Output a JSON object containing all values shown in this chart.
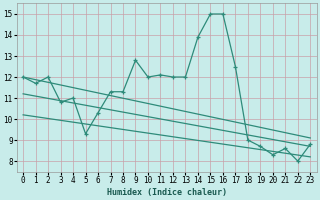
{
  "title": "",
  "xlabel": "Humidex (Indice chaleur)",
  "background_color": "#c8ecea",
  "grid_color": "#b0b0b0",
  "line_color": "#2e8b7a",
  "xlim": [
    -0.5,
    23.5
  ],
  "ylim": [
    7.5,
    15.5
  ],
  "xticks": [
    0,
    1,
    2,
    3,
    4,
    5,
    6,
    7,
    8,
    9,
    10,
    11,
    12,
    13,
    14,
    15,
    16,
    17,
    18,
    19,
    20,
    21,
    22,
    23
  ],
  "yticks": [
    8,
    9,
    10,
    11,
    12,
    13,
    14,
    15
  ],
  "main_x": [
    0,
    1,
    2,
    3,
    4,
    5,
    6,
    7,
    8,
    9,
    10,
    11,
    12,
    13,
    14,
    15,
    16,
    17,
    18,
    19,
    20,
    21,
    22,
    23
  ],
  "main_y": [
    12.0,
    11.7,
    12.0,
    10.8,
    11.0,
    9.3,
    10.3,
    11.3,
    11.3,
    12.8,
    12.0,
    12.1,
    12.0,
    12.0,
    13.9,
    15.0,
    15.0,
    12.5,
    9.0,
    8.7,
    8.3,
    8.6,
    8.0,
    8.8
  ],
  "trend1_x": [
    0,
    23
  ],
  "trend1_y": [
    12.0,
    9.1
  ],
  "trend2_x": [
    0,
    23
  ],
  "trend2_y": [
    10.2,
    8.2
  ],
  "trend3_x": [
    0,
    23
  ],
  "trend3_y": [
    11.2,
    8.7
  ]
}
